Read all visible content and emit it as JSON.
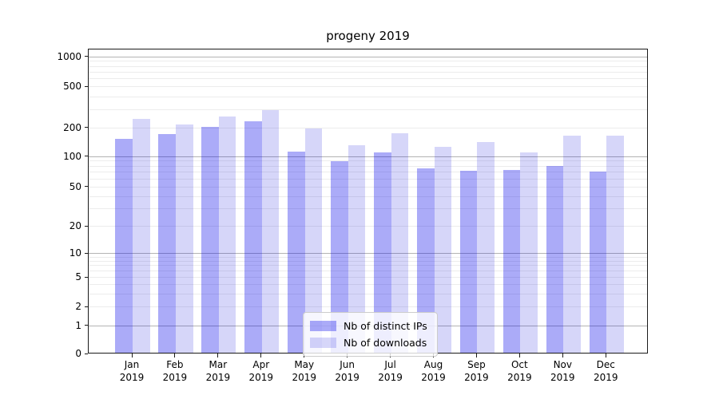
{
  "chart_data": {
    "type": "bar",
    "title": "progeny 2019",
    "categories": [
      "Jan 2019",
      "Feb 2019",
      "Mar 2019",
      "Apr 2019",
      "May 2019",
      "Jun 2019",
      "Jul 2019",
      "Aug 2019",
      "Sep 2019",
      "Oct 2019",
      "Nov 2019",
      "Dec 2019"
    ],
    "series": [
      {
        "name": "Nb of distinct IPs",
        "color": "rgba(0,0,234,0.33)",
        "values": [
          150,
          167,
          200,
          226,
          110,
          88,
          108,
          74,
          70,
          71,
          79,
          69
        ]
      },
      {
        "name": "Nb of downloads",
        "color": "rgba(0,0,215,0.16)",
        "values": [
          238,
          211,
          252,
          288,
          192,
          128,
          170,
          122,
          139,
          108,
          162,
          162
        ]
      }
    ],
    "xlabel": "",
    "ylabel": "",
    "yscale": "symlog",
    "yticks": [
      "0",
      "1",
      "2",
      "5",
      "10",
      "20",
      "50",
      "100",
      "200",
      "500",
      "1000"
    ],
    "ylim": [
      0,
      1200
    ],
    "grid": "horizontal",
    "legend_position": "lower-center",
    "colors": {
      "bar_dark": "rgba(0,0,234,0.33)",
      "bar_light": "rgba(0,0,215,0.16)",
      "major_grid": "#b3b3b3",
      "minor_grid": "#ececec",
      "spine": "#1a1a1a"
    }
  }
}
